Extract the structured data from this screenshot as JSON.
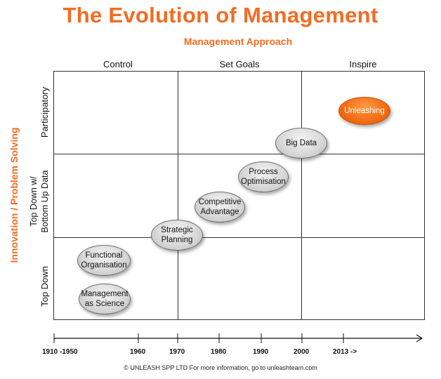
{
  "title": "The Evolution of Management",
  "subtitle": "Management Approach",
  "columns": [
    "Control",
    "Set Goals",
    "Inspire"
  ],
  "y_axis_title": "Innovation / Problem Solving",
  "rows": {
    "participatory": "Participatory",
    "top_down_bottom_up_line1": "Top Down w/",
    "top_down_bottom_up_line2": "Bottom Up Data",
    "top_down": "Top Down"
  },
  "bubbles": {
    "management_as_science": [
      "Management",
      "as Science"
    ],
    "functional_organisation": [
      "Functional",
      "Organisation"
    ],
    "strategic_planning": [
      "Strategic",
      "Planning"
    ],
    "competitive_advantage": [
      "Competitive",
      "Advantage"
    ],
    "process_optimisation": [
      "Process",
      "Optimisation"
    ],
    "big_data": [
      "Big Data"
    ],
    "unleashing": [
      "Unleashing"
    ]
  },
  "timeline": [
    "1910 -1950",
    "1960",
    "1970",
    "1980",
    "1990",
    "2000",
    "2013 ->"
  ],
  "footer": "© UNLEASH SPP LTD   For more information, go to unleashteam.com",
  "colors": {
    "accent": "#f26c22",
    "bubble": "#d9d9d9",
    "line": "#333333"
  }
}
